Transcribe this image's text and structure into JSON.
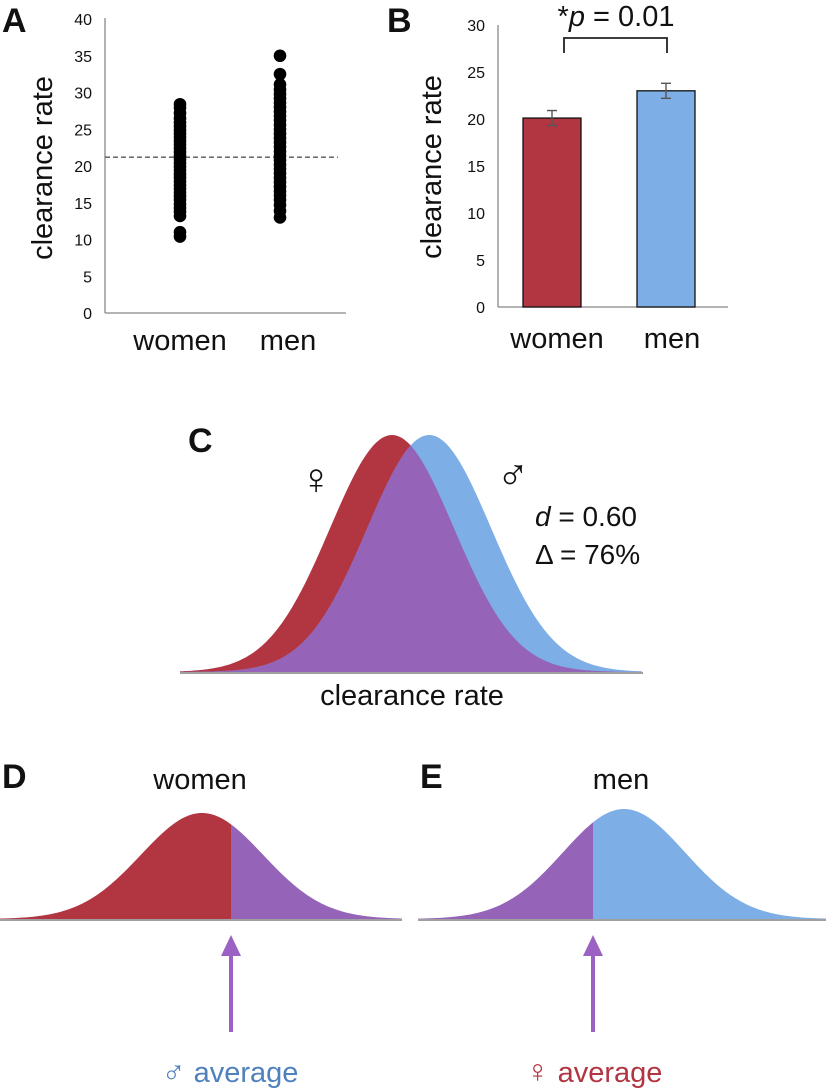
{
  "colors": {
    "women": "#b23542",
    "men": "#7eaee6",
    "overlap": "#9564b9",
    "men_label": "#4f81bd",
    "women_label": "#b23542",
    "arrow": "#9b62c4"
  },
  "chart_data": [
    {
      "panel": "A",
      "type": "scatter",
      "categories": [
        "women",
        "men"
      ],
      "ylabel": "clearance rate",
      "ylim": [
        0,
        40
      ],
      "yticks": [
        "0",
        "5",
        "10",
        "15",
        "20",
        "25",
        "30",
        "35",
        "40"
      ],
      "reference_line": 21.2,
      "series": [
        {
          "name": "women",
          "values": [
            10.4,
            11.0,
            13.2,
            13.8,
            14.3,
            14.8,
            15.4,
            15.9,
            16.4,
            16.9,
            17.4,
            17.9,
            18.4,
            18.9,
            19.4,
            19.9,
            20.4,
            20.9,
            21.4,
            21.9,
            22.4,
            22.9,
            23.4,
            23.9,
            24.4,
            24.9,
            25.4,
            25.9,
            26.5,
            27.2,
            27.9,
            28.4
          ]
        },
        {
          "name": "men",
          "values": [
            13.0,
            13.9,
            14.7,
            15.4,
            16.0,
            16.6,
            17.2,
            17.8,
            18.4,
            19.0,
            19.6,
            20.2,
            20.8,
            21.4,
            22.0,
            22.6,
            23.2,
            23.8,
            24.4,
            25.0,
            25.6,
            26.2,
            26.8,
            27.4,
            28.0,
            28.6,
            29.2,
            29.8,
            30.4,
            31.1,
            32.5,
            35.0
          ]
        }
      ]
    },
    {
      "panel": "B",
      "type": "bar",
      "categories": [
        "women",
        "men"
      ],
      "values": [
        20.1,
        23.0
      ],
      "errors": [
        0.8,
        0.8
      ],
      "ylabel": "clearance rate",
      "ylim": [
        0,
        30
      ],
      "yticks": [
        "0",
        "5",
        "10",
        "15",
        "20",
        "25",
        "30"
      ],
      "annotation": {
        "prefix": "*",
        "variable": "p",
        "rest": " = 0.01"
      }
    },
    {
      "panel": "C",
      "type": "area",
      "title": "",
      "xlabel": "clearance rate",
      "series": [
        {
          "name": "women",
          "symbol": "♀",
          "mean": 0.0,
          "sd": 1.0
        },
        {
          "name": "men",
          "symbol": "♂",
          "mean": 0.6,
          "sd": 1.0
        }
      ],
      "stats": {
        "d_symbol": "d",
        "d_rest": " = 0.60",
        "delta_text": "Δ = 76%"
      }
    },
    {
      "panel": "D",
      "type": "area",
      "title": "women",
      "mean": 0.0,
      "sd": 1.0,
      "cutoff": 0.6,
      "marker_symbol": "♂",
      "marker_text": " average"
    },
    {
      "panel": "E",
      "type": "area",
      "title": "men",
      "mean": 0.6,
      "sd": 1.0,
      "cutoff": 0.0,
      "marker_symbol": "♀",
      "marker_text": " average"
    }
  ]
}
